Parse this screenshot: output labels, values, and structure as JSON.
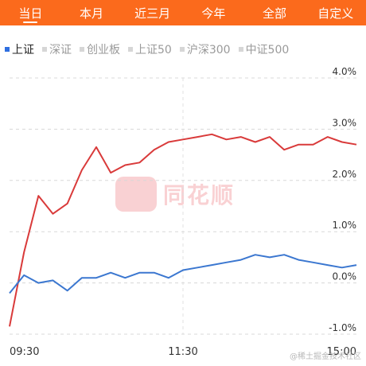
{
  "tabs": [
    {
      "label": "当日",
      "active": true
    },
    {
      "label": "本月",
      "active": false
    },
    {
      "label": "近三月",
      "active": false
    },
    {
      "label": "今年",
      "active": false
    },
    {
      "label": "全部",
      "active": false
    },
    {
      "label": "自定义",
      "active": false
    }
  ],
  "legend": [
    {
      "label": "上证",
      "active": true
    },
    {
      "label": "深证",
      "active": false
    },
    {
      "label": "创业板",
      "active": false
    },
    {
      "label": "上证50",
      "active": false
    },
    {
      "label": "沪深300",
      "active": false
    },
    {
      "label": "中证500",
      "active": false
    }
  ],
  "colors": {
    "accent": "#fb6a1c",
    "red_series": "#d93a3a",
    "blue_series": "#3b77d0"
  },
  "watermark": {
    "text": "同花顺"
  },
  "credit": "@稀土掘金技术社区",
  "chart_data": {
    "type": "line",
    "x_ticks": [
      "09:30",
      "11:30",
      "15:00"
    ],
    "y_ticks": [
      "4.0%",
      "3.0%",
      "2.0%",
      "1.0%",
      "0.0%",
      "-1.0%"
    ],
    "ylim": [
      -1.0,
      4.0
    ],
    "grid": true,
    "x": [
      "09:30",
      "09:40",
      "09:50",
      "10:00",
      "10:10",
      "10:20",
      "10:30",
      "10:40",
      "10:50",
      "11:00",
      "11:10",
      "11:20",
      "11:30",
      "13:10",
      "13:20",
      "13:30",
      "13:40",
      "13:50",
      "14:00",
      "14:10",
      "14:20",
      "14:30",
      "14:40",
      "14:50",
      "15:00"
    ],
    "series": [
      {
        "color": "#d93a3a",
        "values": [
          -0.85,
          0.6,
          1.7,
          1.35,
          1.55,
          2.2,
          2.65,
          2.15,
          2.3,
          2.35,
          2.6,
          2.75,
          2.8,
          2.85,
          2.9,
          2.8,
          2.85,
          2.75,
          2.85,
          2.6,
          2.7,
          2.7,
          2.85,
          2.75,
          2.7
        ]
      },
      {
        "color": "#3b77d0",
        "values": [
          -0.2,
          0.15,
          0.0,
          0.05,
          -0.15,
          0.1,
          0.1,
          0.2,
          0.1,
          0.2,
          0.2,
          0.1,
          0.25,
          0.3,
          0.35,
          0.4,
          0.45,
          0.55,
          0.5,
          0.55,
          0.45,
          0.4,
          0.35,
          0.3,
          0.35
        ]
      }
    ]
  }
}
